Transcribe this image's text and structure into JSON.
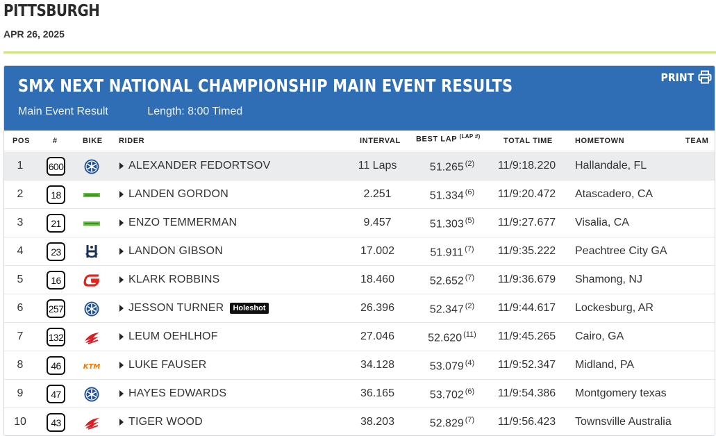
{
  "page": {
    "city": "PITTSBURGH",
    "date": "APR 26, 2025"
  },
  "panel": {
    "title": "SMX NEXT NATIONAL CHAMPIONSHIP MAIN EVENT RESULTS",
    "event_label": "Main Event Result",
    "length_label": "Length: 8:00 Timed",
    "print_label": "PRINT",
    "header_bg": "#2f6eb5"
  },
  "columns": {
    "pos": "POS",
    "num": "#",
    "bike": "BIKE",
    "rider": "RIDER",
    "interval": "INTERVAL",
    "best_lap": "BEST LAP",
    "best_lap_sub": "(LAP #)",
    "total_time": "TOTAL TIME",
    "hometown": "HOMETOWN",
    "team": "TEAM"
  },
  "results": [
    {
      "pos": "1",
      "num": "600",
      "bike": "yamaha-logo-icon",
      "rider": "ALEXANDER FEDORTSOV",
      "badge": "",
      "interval": "11 Laps",
      "best_lap": "51.265",
      "lap": "(2)",
      "total": "11/9:18.220",
      "hometown": "Hallandale, FL"
    },
    {
      "pos": "2",
      "num": "18",
      "bike": "kawasaki-logo-icon",
      "rider": "LANDEN GORDON",
      "badge": "",
      "interval": "2.251",
      "best_lap": "51.334",
      "lap": "(6)",
      "total": "11/9:20.472",
      "hometown": "Atascadero, CA"
    },
    {
      "pos": "3",
      "num": "21",
      "bike": "kawasaki-logo-icon",
      "rider": "ENZO TEMMERMAN",
      "badge": "",
      "interval": "9.457",
      "best_lap": "51.303",
      "lap": "(5)",
      "total": "11/9:27.677",
      "hometown": "Visalia, CA"
    },
    {
      "pos": "4",
      "num": "23",
      "bike": "husqvarna-logo-icon",
      "rider": "LANDON GIBSON",
      "badge": "",
      "interval": "17.002",
      "best_lap": "51.911",
      "lap": "(7)",
      "total": "11/9:35.222",
      "hometown": "Peachtree City GA"
    },
    {
      "pos": "5",
      "num": "16",
      "bike": "gasgas-logo-icon",
      "rider": "KLARK ROBBINS",
      "badge": "",
      "interval": "18.460",
      "best_lap": "52.652",
      "lap": "(7)",
      "total": "11/9:36.679",
      "hometown": "Shamong, NJ"
    },
    {
      "pos": "6",
      "num": "257",
      "bike": "yamaha-logo-icon",
      "rider": "JESSON TURNER",
      "badge": "Holeshot",
      "interval": "26.396",
      "best_lap": "52.347",
      "lap": "(2)",
      "total": "11/9:44.617",
      "hometown": "Lockesburg, AR"
    },
    {
      "pos": "7",
      "num": "132",
      "bike": "honda-logo-icon",
      "rider": "LEUM OEHLHOF",
      "badge": "",
      "interval": "27.046",
      "best_lap": "52.620",
      "lap": "(11)",
      "total": "11/9:45.265",
      "hometown": "Cairo, GA"
    },
    {
      "pos": "8",
      "num": "46",
      "bike": "ktm-logo-icon",
      "rider": "LUKE FAUSER",
      "badge": "",
      "interval": "34.128",
      "best_lap": "53.079",
      "lap": "(4)",
      "total": "11/9:52.347",
      "hometown": "Midland, PA"
    },
    {
      "pos": "9",
      "num": "47",
      "bike": "yamaha-logo-icon",
      "rider": "HAYES EDWARDS",
      "badge": "",
      "interval": "36.165",
      "best_lap": "53.702",
      "lap": "(6)",
      "total": "11/9:54.386",
      "hometown": "Montgomery texas"
    },
    {
      "pos": "10",
      "num": "43",
      "bike": "honda-logo-icon",
      "rider": "TIGER WOOD",
      "badge": "",
      "interval": "38.203",
      "best_lap": "52.829",
      "lap": "(7)",
      "total": "11/9:56.423",
      "hometown": "Townsville Australia"
    }
  ],
  "colors": {
    "accent_rule": "#cfe383",
    "yamaha": "#1d4e96",
    "kawasaki": "#5fbf3c",
    "husqvarna": "#1a2f5a",
    "gasgas": "#e2261c",
    "honda": "#d81f26",
    "ktm": "#f07a0c"
  }
}
